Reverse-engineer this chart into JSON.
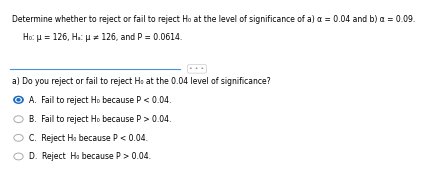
{
  "title_line1": "Determine whether to reject or fail to reject H₀ at the level of significance of a) α = 0.04 and b) α = 0.09.",
  "hyp_line": "H₀: μ = 126, Hₐ: μ ≠ 126, and P = 0.0614.",
  "question": "a) Do you reject or fail to reject H₀ at the 0.04 level of significance?",
  "options": [
    "A.  Fail to reject H₀ because P < 0.04.",
    "B.  Fail to reject H₀ because P > 0.04.",
    "C.  Reject H₀ because P < 0.04.",
    "D.  Reject  H₀ because P > 0.04."
  ],
  "selected": 0,
  "background_color": "#ffffff",
  "text_color": "#000000",
  "selected_color": "#1a6bbf",
  "unselected_color": "#aaaaaa",
  "line_color": "#4a90d9",
  "dots_color": "#888888"
}
